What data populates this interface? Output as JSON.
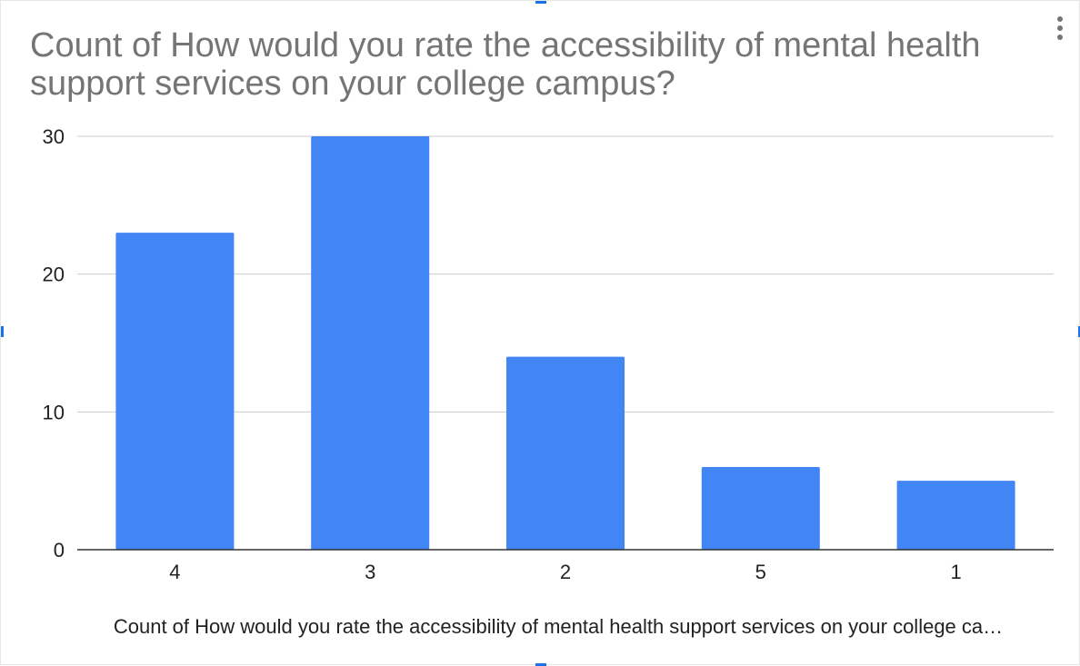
{
  "menu": {
    "icon": "more-vert-icon"
  },
  "colors": {
    "bar": "#4285f4",
    "gridline": "#cccccc",
    "axis": "#333333",
    "title": "#757575",
    "tick_text": "#222222",
    "selection_handle": "#1a73e8"
  },
  "chart_data": {
    "type": "bar",
    "title": "Count of How would you rate the accessibility of mental health support services on your college campus?",
    "xlabel": "Count of How would you rate the accessibility of mental health support services on your college ca…",
    "ylabel": "",
    "categories": [
      "4",
      "3",
      "2",
      "5",
      "1"
    ],
    "values": [
      23,
      30,
      14,
      6,
      5
    ],
    "ylim": [
      0,
      30
    ],
    "yticks": [
      0,
      10,
      20,
      30
    ],
    "ytick_labels": [
      "0",
      "10",
      "20",
      "30"
    ],
    "grid": true,
    "legend": "none"
  }
}
